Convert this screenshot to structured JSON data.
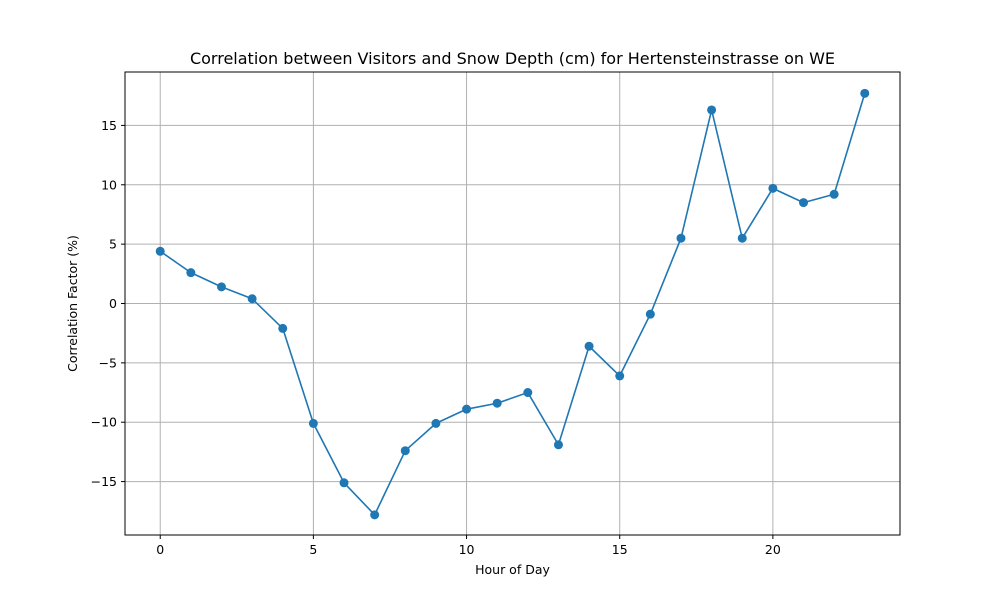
{
  "chart_data": {
    "type": "line",
    "title": "Correlation between Visitors and Snow Depth (cm) for Hertensteinstrasse on WE",
    "xlabel": "Hour of Day",
    "ylabel": "Correlation Factor (%)",
    "xlim": [
      -1.15,
      24.15
    ],
    "ylim": [
      -19.5,
      19.5
    ],
    "xticks": [
      0,
      5,
      10,
      15,
      20
    ],
    "yticks": [
      -15,
      -10,
      -5,
      0,
      5,
      10,
      15
    ],
    "xtick_labels": [
      "0",
      "5",
      "10",
      "15",
      "20"
    ],
    "ytick_labels": [
      "−15",
      "−10",
      "−5",
      "0",
      "5",
      "10",
      "15"
    ],
    "grid": true,
    "legend": "none",
    "series": [
      {
        "color": "#1f77b4",
        "marker": "circle",
        "x": [
          0,
          1,
          2,
          3,
          4,
          5,
          6,
          7,
          8,
          9,
          10,
          11,
          12,
          13,
          14,
          15,
          16,
          17,
          18,
          19,
          20,
          21,
          22,
          23
        ],
        "y": [
          4.4,
          2.6,
          1.4,
          0.4,
          -2.1,
          -10.1,
          -15.1,
          -17.8,
          -12.4,
          -10.1,
          -8.9,
          -8.4,
          -7.5,
          -11.9,
          -3.6,
          -6.1,
          -0.9,
          5.5,
          16.3,
          5.5,
          9.7,
          8.5,
          9.2,
          17.7
        ]
      }
    ]
  }
}
